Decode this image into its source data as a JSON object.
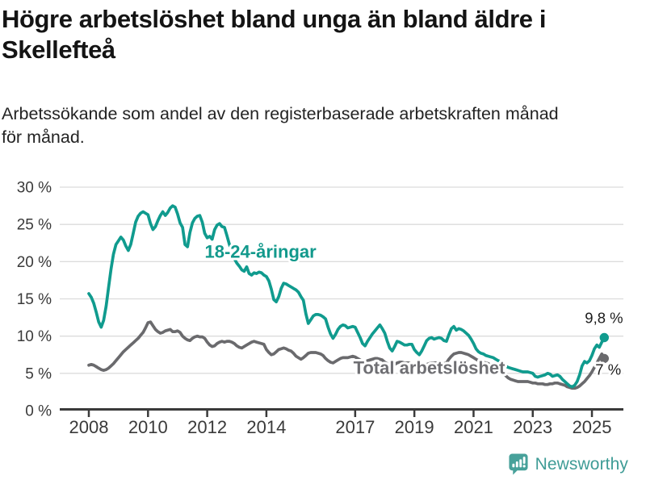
{
  "header": {
    "title_line1": "Högre arbetslöshet bland unga än bland äldre i",
    "title_line2": "Skellefteå",
    "subtitle_line1": "Arbetssökande som andel av den registerbaserade arbetskraften månad",
    "subtitle_line2": "för månad."
  },
  "footer": {
    "brand": "Newsworthy"
  },
  "colors": {
    "accent_teal": "#109b8e",
    "series_gray": "#6a6a6d",
    "label_gray": "#6f6f73",
    "grid": "#dcdcdc",
    "axis": "#3a3a3a",
    "tick_text": "#3a3a3a",
    "value_label": "#1b1b1b",
    "logo_icon": "#47a19a",
    "logo_text": "#3f9c96"
  },
  "chart_data": {
    "type": "line",
    "title": "Högre arbetslöshet bland unga än bland äldre i Skellefteå",
    "subtitle": "Arbetssökande som andel av den registerbaserade arbetskraften månad för månad.",
    "unit": "%",
    "grid": true,
    "legend_position": "inline-labels",
    "x": {
      "start_year": 2008,
      "points_per_year": 12,
      "end_year_decimal": 2025.42,
      "tick_years": [
        2008,
        2010,
        2012,
        2014,
        2017,
        2019,
        2021,
        2023,
        2025
      ],
      "tick_labels": [
        "2008",
        "2010",
        "2012",
        "2014",
        "2017",
        "2019",
        "2021",
        "2023",
        "2025"
      ]
    },
    "y": {
      "min": 0,
      "max": 30,
      "ticks": [
        0,
        5,
        10,
        15,
        20,
        25,
        30
      ],
      "tick_labels": [
        "0 %",
        "5 %",
        "10 %",
        "15 %",
        "20 %",
        "25 %",
        "30 %"
      ]
    },
    "series": [
      {
        "id": "youth",
        "name": "18-24-åringar",
        "color": "#109b8e",
        "label_color": "#12998c",
        "end_label": "9,8 %",
        "last_value": 9.8,
        "label_pos": {
          "year": 2013.8,
          "value": 21.3
        },
        "values": [
          15.7,
          15.2,
          14.4,
          13.2,
          11.9,
          11.2,
          12.1,
          14.0,
          16.5,
          19.0,
          21.0,
          22.3,
          22.8,
          23.3,
          22.9,
          22.1,
          21.5,
          22.3,
          23.8,
          25.3,
          26.1,
          26.5,
          26.7,
          26.5,
          26.3,
          25.1,
          24.3,
          24.7,
          25.5,
          26.2,
          26.7,
          26.2,
          26.6,
          27.2,
          27.5,
          27.3,
          26.4,
          25.2,
          24.6,
          22.3,
          22.0,
          23.9,
          25.2,
          25.8,
          26.1,
          26.2,
          25.3,
          23.8,
          23.2,
          23.4,
          23.0,
          24.3,
          24.9,
          25.1,
          24.7,
          24.6,
          23.5,
          22.3,
          21.4,
          20.4,
          19.8,
          19.4,
          18.9,
          18.7,
          19.3,
          18.4,
          18.2,
          18.5,
          18.4,
          18.6,
          18.5,
          18.2,
          18.0,
          17.4,
          16.3,
          14.9,
          14.6,
          15.3,
          16.4,
          17.1,
          17.0,
          16.8,
          16.6,
          16.4,
          16.2,
          15.9,
          15.3,
          14.8,
          13.0,
          11.7,
          12.2,
          12.7,
          12.9,
          12.9,
          12.8,
          12.6,
          12.3,
          11.2,
          10.3,
          9.7,
          10.2,
          10.9,
          11.3,
          11.5,
          11.4,
          11.1,
          11.2,
          11.3,
          11.2,
          10.5,
          9.8,
          9.0,
          8.7,
          9.3,
          9.8,
          10.3,
          10.7,
          11.1,
          11.5,
          11.0,
          10.4,
          9.3,
          8.4,
          8.0,
          8.6,
          9.3,
          9.2,
          9.0,
          8.8,
          8.8,
          8.9,
          8.9,
          8.2,
          7.8,
          7.5,
          8.0,
          8.7,
          9.4,
          9.7,
          9.8,
          9.6,
          9.7,
          9.8,
          9.7,
          9.4,
          9.3,
          10.2,
          11.0,
          11.3,
          10.8,
          11.0,
          10.9,
          10.7,
          10.4,
          10.1,
          9.6,
          9.0,
          8.3,
          7.9,
          7.7,
          7.6,
          7.4,
          7.3,
          7.2,
          7.1,
          6.9,
          6.7,
          6.6,
          6.2,
          6.0,
          5.8,
          5.7,
          5.6,
          5.5,
          5.4,
          5.3,
          5.2,
          5.2,
          5.2,
          5.1,
          5.0,
          4.6,
          4.5,
          4.6,
          4.7,
          4.8,
          5.0,
          4.9,
          4.6,
          4.7,
          4.8,
          4.6,
          4.2,
          3.9,
          3.6,
          3.3,
          3.2,
          3.4,
          3.9,
          4.8,
          6.0,
          6.6,
          6.4,
          6.7,
          7.4,
          8.3,
          8.8,
          8.5,
          9.2,
          9.8
        ]
      },
      {
        "id": "total",
        "name": "Total arbetslöshet",
        "color": "#6a6a6d",
        "label_color": "#6f6f73",
        "end_label": "7 %",
        "last_value": 7.0,
        "label_pos": {
          "year": 2019.5,
          "value": 5.7
        },
        "values": [
          6.1,
          6.2,
          6.1,
          5.9,
          5.7,
          5.5,
          5.4,
          5.5,
          5.7,
          6.0,
          6.3,
          6.7,
          7.1,
          7.5,
          7.9,
          8.2,
          8.5,
          8.8,
          9.1,
          9.4,
          9.7,
          10.1,
          10.5,
          11.1,
          11.8,
          11.9,
          11.4,
          10.9,
          10.6,
          10.4,
          10.5,
          10.7,
          10.8,
          10.9,
          10.6,
          10.6,
          10.7,
          10.5,
          10.0,
          9.7,
          9.5,
          9.4,
          9.7,
          9.9,
          10.0,
          9.9,
          9.9,
          9.7,
          9.2,
          8.8,
          8.6,
          8.7,
          9.0,
          9.2,
          9.3,
          9.2,
          9.3,
          9.3,
          9.2,
          9.0,
          8.7,
          8.5,
          8.4,
          8.6,
          8.8,
          9.0,
          9.2,
          9.3,
          9.2,
          9.1,
          9.0,
          8.9,
          8.2,
          7.8,
          7.5,
          7.6,
          7.9,
          8.2,
          8.3,
          8.4,
          8.3,
          8.1,
          8.0,
          7.7,
          7.3,
          7.1,
          6.9,
          7.1,
          7.4,
          7.7,
          7.8,
          7.8,
          7.8,
          7.7,
          7.6,
          7.4,
          7.0,
          6.7,
          6.5,
          6.4,
          6.6,
          6.8,
          7.0,
          7.1,
          7.1,
          7.1,
          7.2,
          7.3,
          7.2,
          7.0,
          6.8,
          6.6,
          6.5,
          6.7,
          6.8,
          6.9,
          7.0,
          7.0,
          6.9,
          6.8,
          6.5,
          6.3,
          6.1,
          6.1,
          6.2,
          6.4,
          6.5,
          6.5,
          6.4,
          6.4,
          6.4,
          6.3,
          6.1,
          6.0,
          5.9,
          6.0,
          6.1,
          6.2,
          6.3,
          6.4,
          6.4,
          6.4,
          6.4,
          6.3,
          6.3,
          6.4,
          6.9,
          7.3,
          7.6,
          7.7,
          7.8,
          7.8,
          7.7,
          7.6,
          7.5,
          7.3,
          7.1,
          6.9,
          6.7,
          6.6,
          6.5,
          6.4,
          6.3,
          6.1,
          6.0,
          5.8,
          5.6,
          5.3,
          5.0,
          4.7,
          4.4,
          4.2,
          4.1,
          4.0,
          3.9,
          3.9,
          3.9,
          3.9,
          3.9,
          3.8,
          3.7,
          3.7,
          3.6,
          3.6,
          3.6,
          3.5,
          3.5,
          3.6,
          3.6,
          3.7,
          3.7,
          3.6,
          3.5,
          3.4,
          3.2,
          3.1,
          3.0,
          3.0,
          3.1,
          3.3,
          3.6,
          3.9,
          4.3,
          4.7,
          5.2,
          5.8,
          6.4,
          7.0,
          7.6,
          7.0
        ]
      }
    ]
  }
}
